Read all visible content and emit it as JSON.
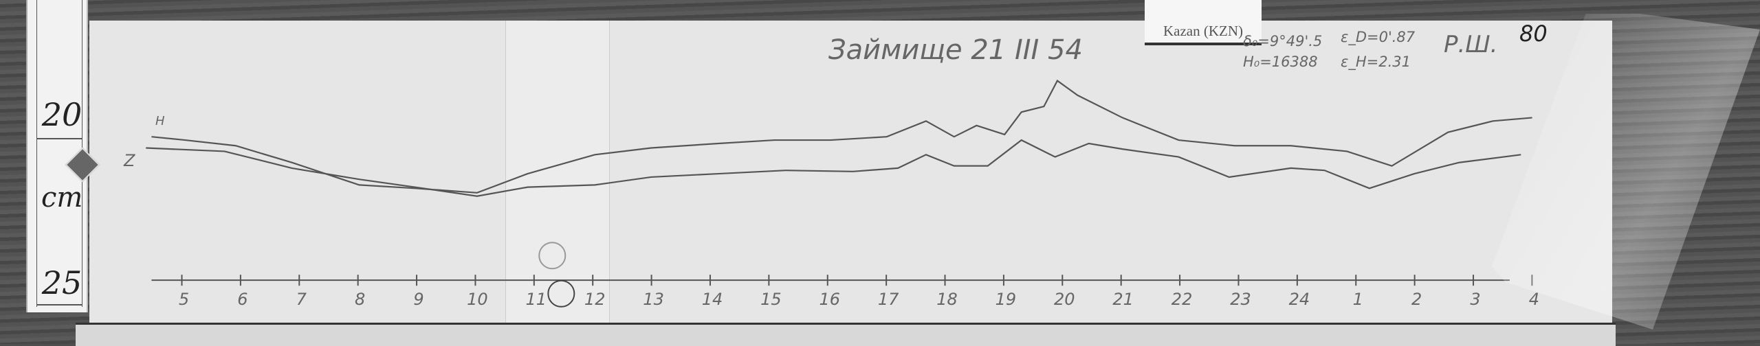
{
  "ruler": {
    "marks": [
      "20",
      "25"
    ],
    "unit": "cm",
    "logo_icon": "diamond-emblem-icon"
  },
  "tag": {
    "text": "Kazan (KZN)"
  },
  "header": {
    "station_date": "Займище 21 III 54",
    "declination": "δ₀=9°49'.5",
    "h_base": "H₀=16388",
    "eps_d": "ε_D=0'.87",
    "eps_h": "ε_H=2.31",
    "initials": "Р.Ш.",
    "sheet_no": "80"
  },
  "traces": {
    "h_label": "H",
    "z_label": "Z"
  },
  "time_axis": {
    "hours": [
      "5",
      "6",
      "7",
      "8",
      "9",
      "10",
      "11",
      "12",
      "13",
      "14",
      "15",
      "16",
      "17",
      "18",
      "19",
      "20",
      "21",
      "22",
      "23",
      "24",
      "1",
      "2",
      "3",
      "4"
    ]
  },
  "colors": {
    "paper": "#e6e6e6",
    "trace": "#555555",
    "background": "#4e4e4e"
  }
}
